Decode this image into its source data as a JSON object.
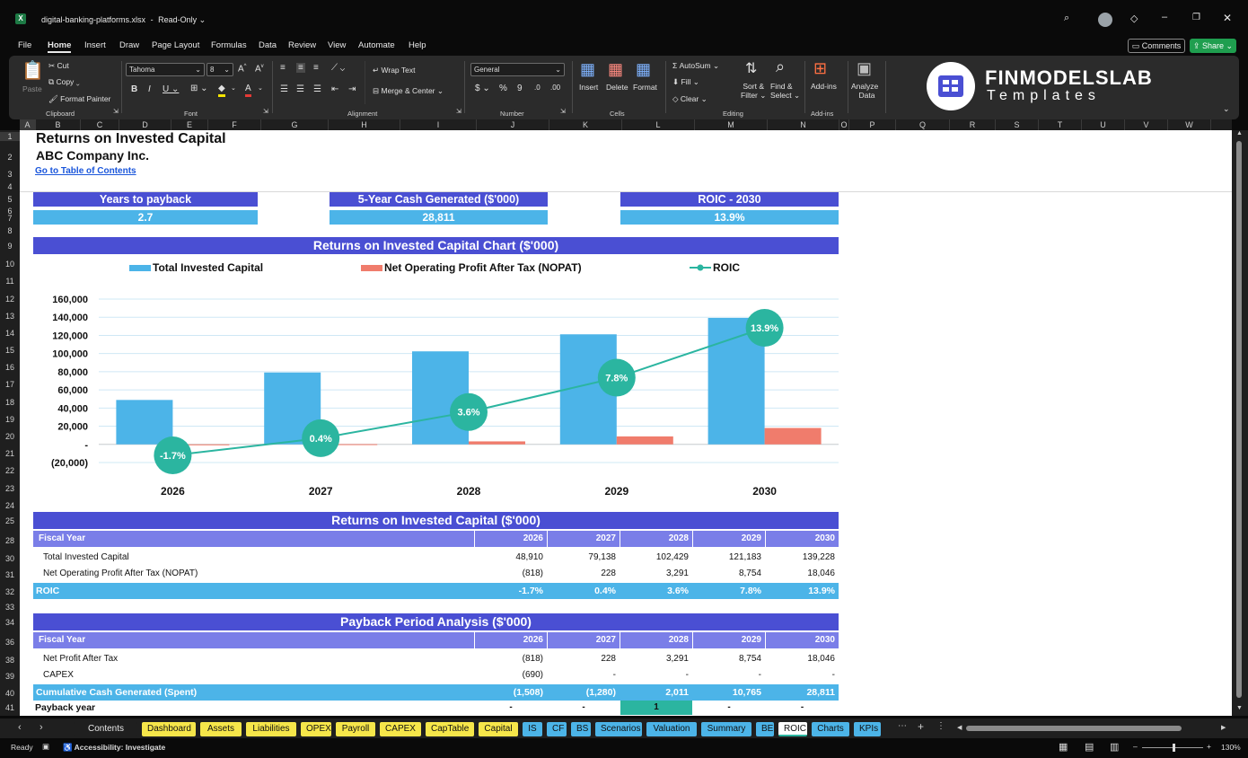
{
  "window": {
    "filename": "digital-banking-platforms.xlsx",
    "mode": "Read-Only",
    "comments_label": "Comments",
    "share_label": "Share"
  },
  "menu": [
    "File",
    "Home",
    "Insert",
    "Draw",
    "Page Layout",
    "Formulas",
    "Data",
    "Review",
    "View",
    "Automate",
    "Help"
  ],
  "ribbon": {
    "paste": "Paste",
    "cut": "Cut",
    "copy": "Copy",
    "format_painter": "Format Painter",
    "clipboard": "Clipboard",
    "font_name": "Tahoma",
    "font_size": "8",
    "font_group": "Font",
    "wrap_text": "Wrap Text",
    "merge_center": "Merge & Center",
    "alignment": "Alignment",
    "number_format": "General",
    "number_group": "Number",
    "insert": "Insert",
    "delete": "Delete",
    "format": "Format",
    "cells": "Cells",
    "autosum": "AutoSum",
    "fill": "Fill",
    "clear": "Clear",
    "sort_filter_1": "Sort &",
    "sort_filter_2": "Filter",
    "find_select_1": "Find &",
    "find_select_2": "Select",
    "editing": "Editing",
    "addins": "Add-ins",
    "addins_group": "Add-ins",
    "analyze_1": "Analyze",
    "analyze_2": "Data",
    "logo_line1": "FINMODELSLAB",
    "logo_line2": "Templates"
  },
  "columns": [
    "A",
    "B",
    "C",
    "D",
    "E",
    "F",
    "G",
    "H",
    "I",
    "J",
    "K",
    "L",
    "M",
    "N",
    "O",
    "P",
    "Q",
    "R",
    "S",
    "T",
    "U",
    "V",
    "W"
  ],
  "rows": [
    "1",
    "2",
    "3",
    "4",
    "5",
    "6",
    "7",
    "8",
    "9",
    "10",
    "11",
    "12",
    "13",
    "14",
    "15",
    "16",
    "17",
    "18",
    "19",
    "20",
    "21",
    "22",
    "23",
    "24",
    "25",
    "28",
    "30",
    "31",
    "32",
    "33",
    "34",
    "36",
    "38",
    "39",
    "40",
    "41"
  ],
  "sheet": {
    "title": "Returns on Invested Capital",
    "company": "ABC Company Inc.",
    "toc_link": "Go to Table of Contents",
    "kpis": [
      {
        "label": "Years to payback",
        "value": "2.7"
      },
      {
        "label": "5-Year Cash Generated ($'000)",
        "value": "28,811"
      },
      {
        "label": "ROIC - 2030",
        "value": "13.9%"
      }
    ],
    "chart_title": "Returns on Invested Capital Chart ($'000)",
    "roic_table": {
      "title": "Returns on Invested Capital ($'000)",
      "header": "Fiscal Year",
      "rows": [
        {
          "label": "Total Invested Capital",
          "values": [
            "48,910",
            "79,138",
            "102,429",
            "121,183",
            "139,228"
          ]
        },
        {
          "label": "Net Operating Profit After Tax (NOPAT)",
          "values": [
            "(818)",
            "228",
            "3,291",
            "8,754",
            "18,046"
          ]
        }
      ],
      "roic_label": "ROIC",
      "roic_values": [
        "-1.7%",
        "0.4%",
        "3.6%",
        "7.8%",
        "13.9%"
      ]
    },
    "payback_table": {
      "title": "Payback Period Analysis ($'000)",
      "header": "Fiscal Year",
      "rows": [
        {
          "label": "Net Profit After Tax",
          "values": [
            "(818)",
            "228",
            "3,291",
            "8,754",
            "18,046"
          ]
        },
        {
          "label": "CAPEX",
          "values": [
            "(690)",
            "-",
            "-",
            "-",
            "-"
          ]
        }
      ],
      "cumulative_label": "Cumulative Cash Generated (Spent)",
      "cumulative_values": [
        "(1,508)",
        "(1,280)",
        "2,011",
        "10,765",
        "28,811"
      ],
      "payback_label": "Payback year",
      "payback_values": [
        "-",
        "-",
        "1",
        "-",
        "-"
      ]
    },
    "years": [
      "2026",
      "2027",
      "2028",
      "2029",
      "2030"
    ]
  },
  "chart_data": {
    "type": "bar",
    "title": "Returns on Invested Capital Chart ($'000)",
    "categories": [
      "2026",
      "2027",
      "2028",
      "2029",
      "2030"
    ],
    "series": [
      {
        "name": "Total Invested Capital",
        "type": "bar",
        "values": [
          48910,
          79138,
          102429,
          121183,
          139228
        ],
        "color": "#4cb4e8"
      },
      {
        "name": "Net Operating Profit After Tax (NOPAT)",
        "type": "bar",
        "values": [
          -818,
          228,
          3291,
          8754,
          18046
        ],
        "color": "#f07c6c"
      },
      {
        "name": "ROIC",
        "type": "line",
        "values": [
          -1.7,
          0.4,
          3.6,
          7.8,
          13.9
        ],
        "labels": [
          "-1.7%",
          "0.4%",
          "3.6%",
          "7.8%",
          "13.9%"
        ],
        "color": "#2bb5a0"
      }
    ],
    "yticks": [
      "160,000",
      "140,000",
      "120,000",
      "100,000",
      "80,000",
      "60,000",
      "40,000",
      "20,000",
      "-",
      "(20,000)"
    ],
    "ylim": [
      -20000,
      160000
    ],
    "legend": "top",
    "grid": true
  },
  "tabs": [
    {
      "label": "Contents",
      "color": "#1f1f1f"
    },
    {
      "label": "Dashboard",
      "color": "#f6e64a"
    },
    {
      "label": "Assets",
      "color": "#f6e64a"
    },
    {
      "label": "Liabilities",
      "color": "#f6e64a"
    },
    {
      "label": "OPEX",
      "color": "#f6e64a"
    },
    {
      "label": "Payroll",
      "color": "#f6e64a"
    },
    {
      "label": "CAPEX",
      "color": "#f6e64a"
    },
    {
      "label": "CapTable",
      "color": "#f6e64a"
    },
    {
      "label": "Capital",
      "color": "#f6e64a"
    },
    {
      "label": "IS",
      "color": "#4cb4e8"
    },
    {
      "label": "CF",
      "color": "#4cb4e8"
    },
    {
      "label": "BS",
      "color": "#4cb4e8"
    },
    {
      "label": "Scenarios",
      "color": "#4cb4e8"
    },
    {
      "label": "Valuation",
      "color": "#4cb4e8"
    },
    {
      "label": "Summary",
      "color": "#4cb4e8"
    },
    {
      "label": "BE",
      "color": "#4cb4e8"
    },
    {
      "label": "ROIC",
      "color": "#ffffff"
    },
    {
      "label": "Charts",
      "color": "#4cb4e8"
    },
    {
      "label": "KPIs",
      "color": "#4cb4e8"
    }
  ],
  "status": {
    "ready": "Ready",
    "accessibility": "Accessibility: Investigate",
    "zoom": "130%"
  }
}
